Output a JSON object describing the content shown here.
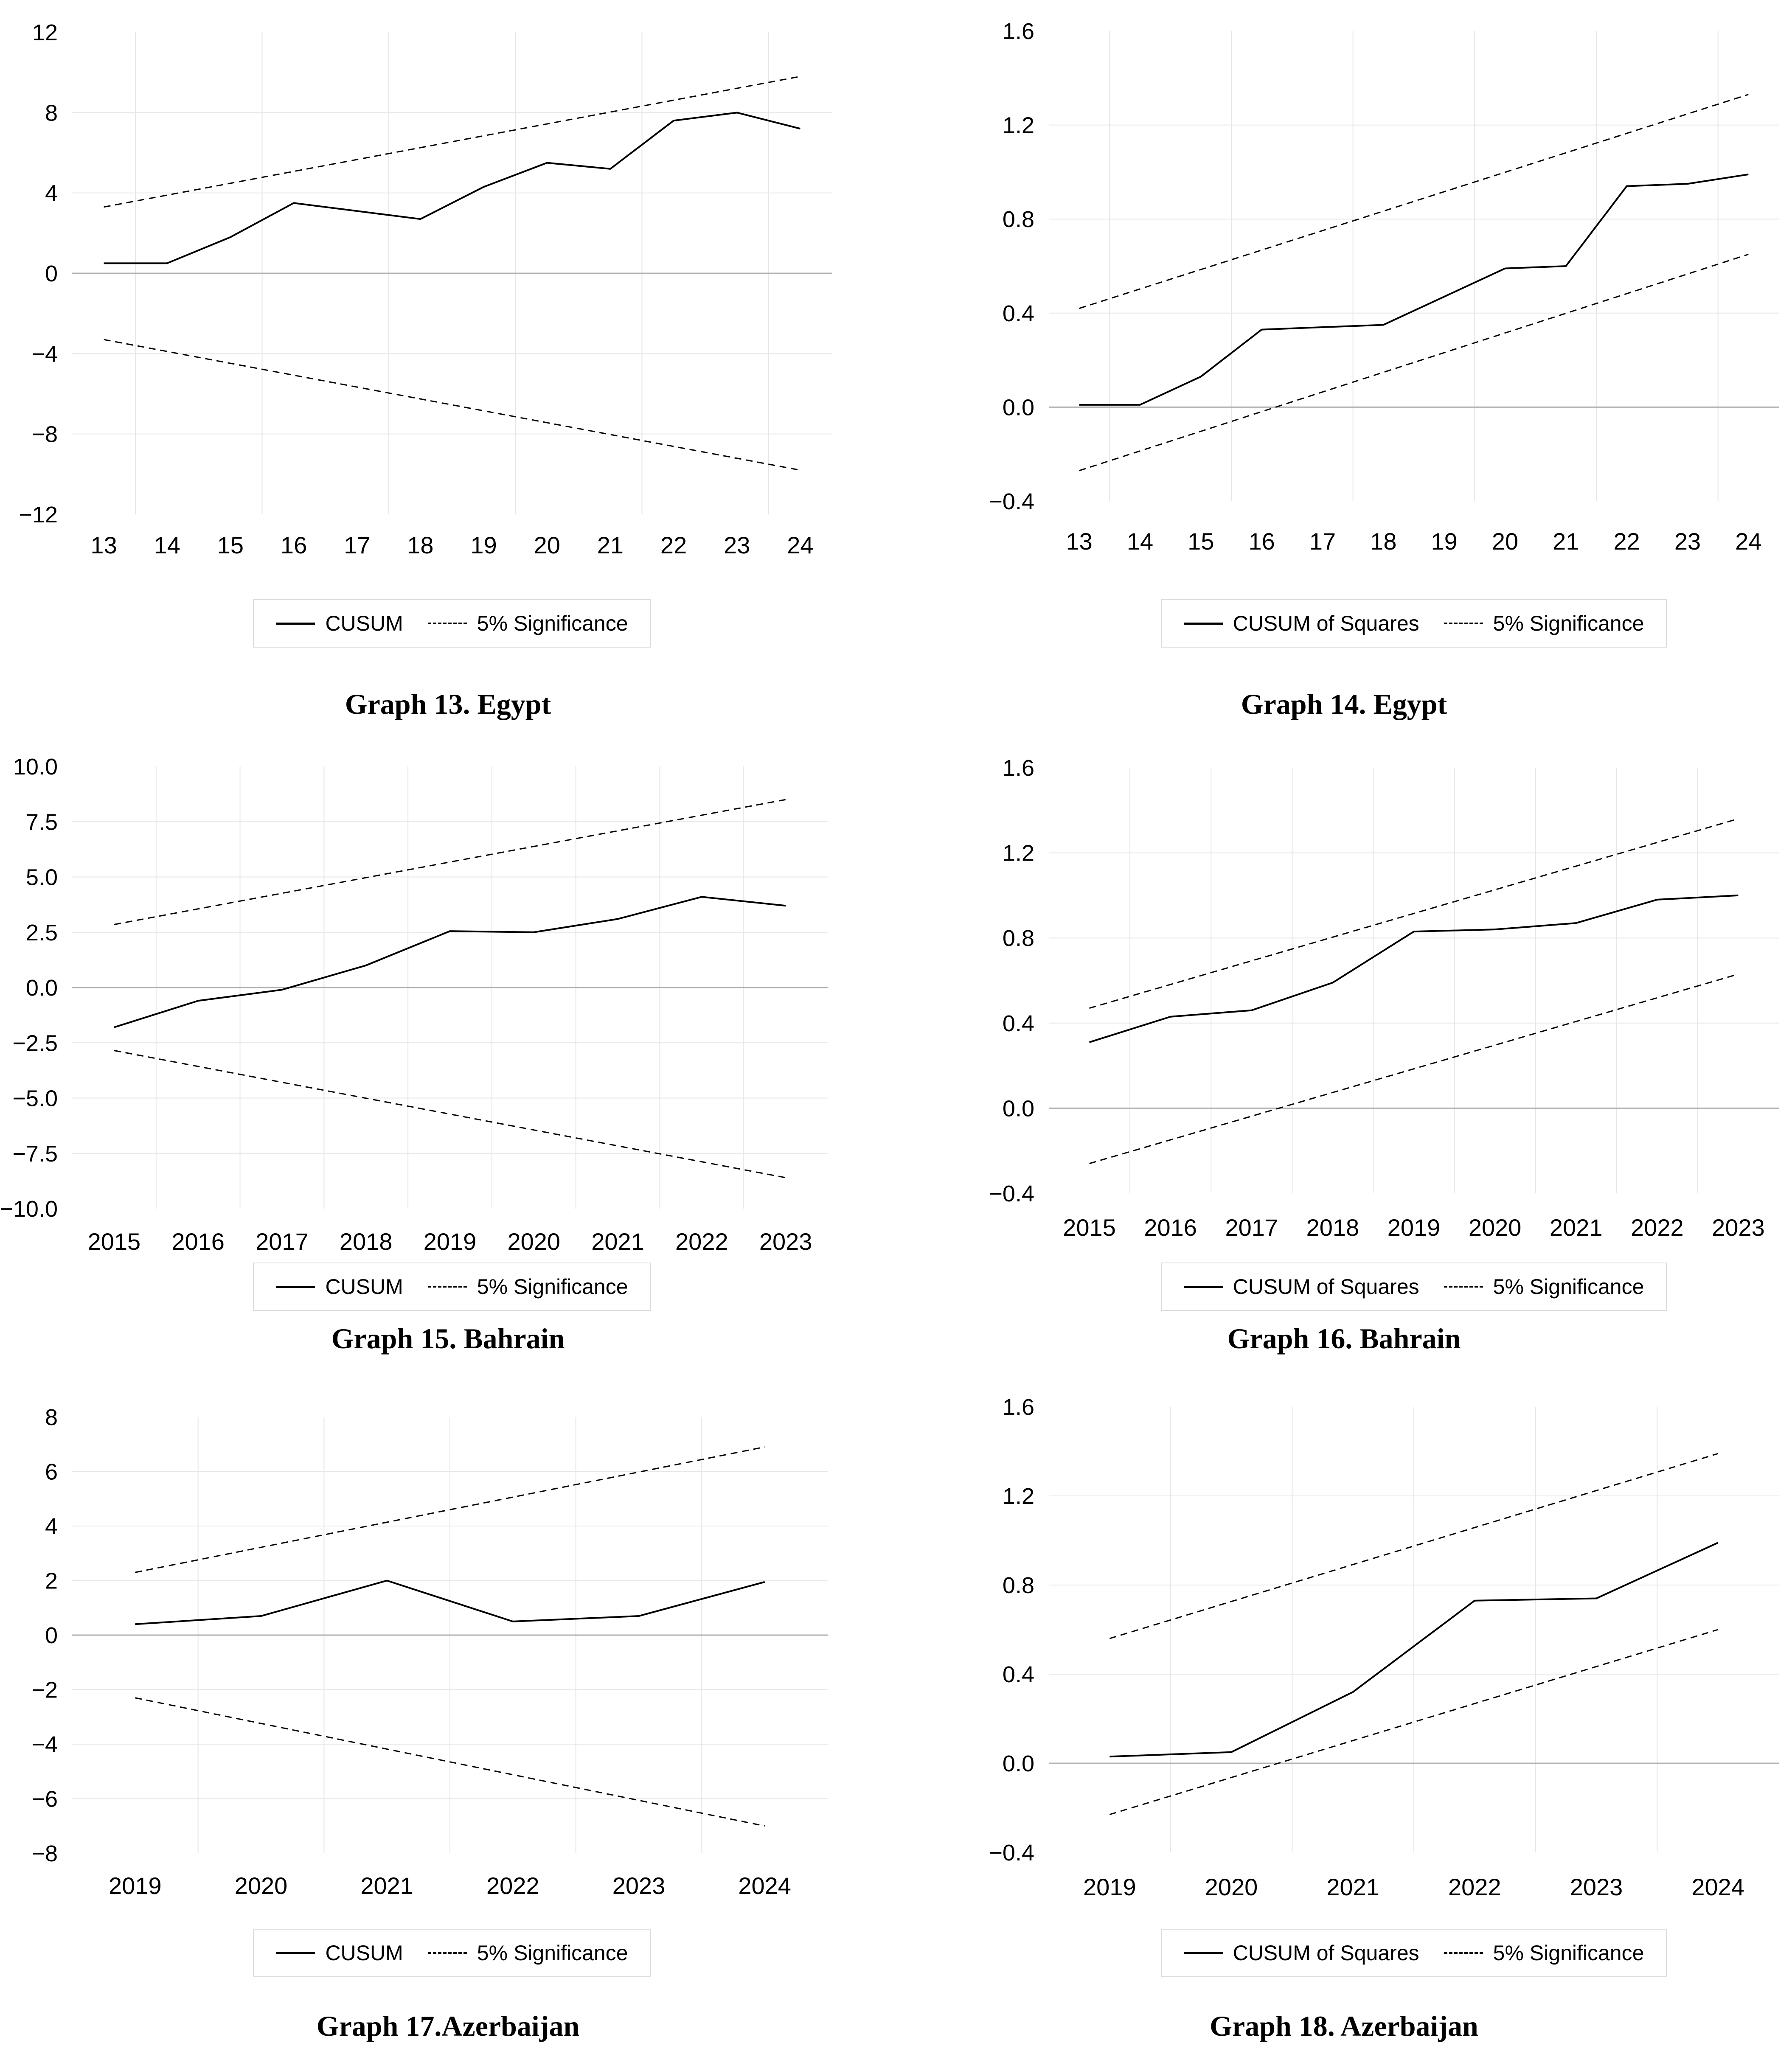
{
  "colors": {
    "series_line": "#000000",
    "significance_line": "#000000",
    "gridline": "#e6e6e6",
    "zero_line": "#b0b0b0",
    "legend_border": "#dcdcdc",
    "text": "#000000",
    "background": "#ffffff"
  },
  "chart_data": [
    {
      "id": "graph-13",
      "type": "line",
      "title": "Graph 13. Egypt",
      "country": "Egypt",
      "series_label": "CUSUM",
      "significance_label": "5% Significance",
      "categories": [
        "13",
        "14",
        "15",
        "16",
        "17",
        "18",
        "19",
        "20",
        "21",
        "22",
        "23",
        "24"
      ],
      "y_ticks": [
        {
          "label": "12",
          "value": 12
        },
        {
          "label": "8",
          "value": 8
        },
        {
          "label": "4",
          "value": 4
        },
        {
          "label": "0",
          "value": 0
        },
        {
          "label": "−4",
          "value": -4
        },
        {
          "label": "−8",
          "value": -8
        },
        {
          "label": "−12",
          "value": -12
        }
      ],
      "ylim": [
        -12,
        12
      ],
      "values": [
        0.5,
        0.5,
        1.8,
        3.5,
        3.1,
        2.7,
        4.3,
        5.5,
        5.2,
        7.6,
        8.0,
        7.2
      ],
      "upper_bound": {
        "start": 3.3,
        "end": 9.8
      },
      "lower_bound": {
        "start": -3.3,
        "end": -9.8
      },
      "grid_every": 2,
      "legend_position": "bottom-center",
      "grid": "on"
    },
    {
      "id": "graph-14",
      "type": "line",
      "title": "Graph 14. Egypt",
      "country": "Egypt",
      "series_label": "CUSUM of Squares",
      "significance_label": "5% Significance",
      "categories": [
        "13",
        "14",
        "15",
        "16",
        "17",
        "18",
        "19",
        "20",
        "21",
        "22",
        "23",
        "24"
      ],
      "y_ticks": [
        {
          "label": "1.6",
          "value": 1.6
        },
        {
          "label": "1.2",
          "value": 1.2
        },
        {
          "label": "0.8",
          "value": 0.8
        },
        {
          "label": "0.4",
          "value": 0.4
        },
        {
          "label": "0.0",
          "value": 0
        },
        {
          "label": "−0.4",
          "value": -0.4
        }
      ],
      "ylim": [
        -0.4,
        1.6
      ],
      "values": [
        0.01,
        0.01,
        0.13,
        0.33,
        0.34,
        0.35,
        0.47,
        0.59,
        0.6,
        0.94,
        0.95,
        0.99
      ],
      "upper_bound": {
        "start": 0.42,
        "end": 1.33
      },
      "lower_bound": {
        "start": -0.27,
        "end": 0.65
      },
      "grid_every": 2,
      "legend_position": "bottom-center",
      "grid": "on"
    },
    {
      "id": "graph-15",
      "type": "line",
      "title": "Graph 15. Bahrain",
      "country": "Bahrain",
      "series_label": "CUSUM",
      "significance_label": "5% Significance",
      "categories": [
        "2015",
        "2016",
        "2017",
        "2018",
        "2019",
        "2020",
        "2021",
        "2022",
        "2023"
      ],
      "y_ticks": [
        {
          "label": "10.0",
          "value": 10
        },
        {
          "label": "7.5",
          "value": 7.5
        },
        {
          "label": "5.0",
          "value": 5
        },
        {
          "label": "2.5",
          "value": 2.5
        },
        {
          "label": "0.0",
          "value": 0
        },
        {
          "label": "−2.5",
          "value": -2.5
        },
        {
          "label": "−5.0",
          "value": -5
        },
        {
          "label": "−7.5",
          "value": -7.5
        },
        {
          "label": "−10.0",
          "value": -10
        }
      ],
      "ylim": [
        -10,
        10
      ],
      "values": [
        -1.8,
        -0.6,
        -0.1,
        1.0,
        2.55,
        2.5,
        3.1,
        4.1,
        3.7
      ],
      "upper_bound": {
        "start": 2.85,
        "end": 8.5
      },
      "lower_bound": {
        "start": -2.85,
        "end": -8.6
      },
      "grid_every": 1,
      "legend_position": "bottom-center",
      "grid": "on"
    },
    {
      "id": "graph-16",
      "type": "line",
      "title": "Graph 16. Bahrain",
      "country": "Bahrain",
      "series_label": "CUSUM of Squares",
      "significance_label": "5% Significance",
      "categories": [
        "2015",
        "2016",
        "2017",
        "2018",
        "2019",
        "2020",
        "2021",
        "2022",
        "2023"
      ],
      "y_ticks": [
        {
          "label": "1.6",
          "value": 1.6
        },
        {
          "label": "1.2",
          "value": 1.2
        },
        {
          "label": "0.8",
          "value": 0.8
        },
        {
          "label": "0.4",
          "value": 0.4
        },
        {
          "label": "0.0",
          "value": 0
        },
        {
          "label": "−0.4",
          "value": -0.4
        }
      ],
      "ylim": [
        -0.4,
        1.6
      ],
      "values": [
        0.31,
        0.43,
        0.46,
        0.59,
        0.83,
        0.84,
        0.87,
        0.98,
        1.0
      ],
      "upper_bound": {
        "start": 0.47,
        "end": 1.36
      },
      "lower_bound": {
        "start": -0.26,
        "end": 0.63
      },
      "grid_every": 1,
      "legend_position": "bottom-center",
      "grid": "on"
    },
    {
      "id": "graph-17",
      "type": "line",
      "title": "Graph 17.Azerbaijan",
      "country": "Azerbaijan",
      "series_label": "CUSUM",
      "significance_label": "5% Significance",
      "categories": [
        "2019",
        "2020",
        "2021",
        "2022",
        "2023",
        "2024"
      ],
      "y_ticks": [
        {
          "label": "8",
          "value": 8
        },
        {
          "label": "6",
          "value": 6
        },
        {
          "label": "4",
          "value": 4
        },
        {
          "label": "2",
          "value": 2
        },
        {
          "label": "0",
          "value": 0
        },
        {
          "label": "−2",
          "value": -2
        },
        {
          "label": "−4",
          "value": -4
        },
        {
          "label": "−6",
          "value": -6
        },
        {
          "label": "−8",
          "value": -8
        }
      ],
      "ylim": [
        -8,
        8
      ],
      "values": [
        0.4,
        0.7,
        2.0,
        0.5,
        0.7,
        1.95
      ],
      "upper_bound": {
        "start": 2.3,
        "end": 6.9
      },
      "lower_bound": {
        "start": -2.3,
        "end": -7.0
      },
      "grid_every": 1,
      "legend_position": "bottom-center",
      "grid": "on"
    },
    {
      "id": "graph-18",
      "type": "line",
      "title": "Graph 18. Azerbaijan",
      "country": "Azerbaijan",
      "series_label": "CUSUM of Squares",
      "significance_label": "5% Significance",
      "categories": [
        "2019",
        "2020",
        "2021",
        "2022",
        "2023",
        "2024"
      ],
      "y_ticks": [
        {
          "label": "1.6",
          "value": 1.6
        },
        {
          "label": "1.2",
          "value": 1.2
        },
        {
          "label": "0.8",
          "value": 0.8
        },
        {
          "label": "0.4",
          "value": 0.4
        },
        {
          "label": "0.0",
          "value": 0
        },
        {
          "label": "−0.4",
          "value": -0.4
        }
      ],
      "ylim": [
        -0.4,
        1.6
      ],
      "values": [
        0.03,
        0.05,
        0.32,
        0.73,
        0.74,
        0.99
      ],
      "upper_bound": {
        "start": 0.56,
        "end": 1.39
      },
      "lower_bound": {
        "start": -0.23,
        "end": 0.6
      },
      "grid_every": 1,
      "legend_position": "bottom-center",
      "grid": "on"
    }
  ]
}
